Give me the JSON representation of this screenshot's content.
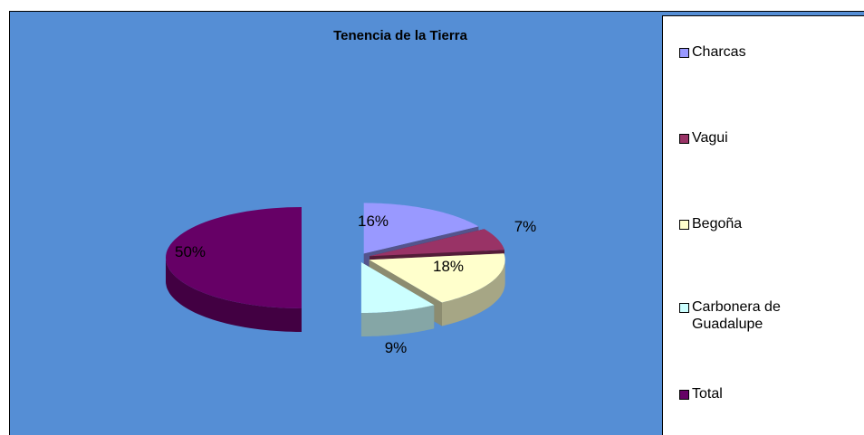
{
  "chart_data": {
    "type": "pie",
    "title": "Tenencia de la Tierra",
    "categories": [
      "Charcas",
      "Vagui",
      "Begoña",
      "Carbonera de Guadalupe",
      "Total"
    ],
    "values": [
      16,
      7,
      18,
      9,
      50
    ],
    "value_labels": [
      "16%",
      "7%",
      "18%",
      "9%",
      "50%"
    ],
    "colors": [
      "#9999ff",
      "#993366",
      "#ffffcc",
      "#ccffff",
      "#660066"
    ],
    "background": "#558ed5",
    "legend": "right"
  }
}
